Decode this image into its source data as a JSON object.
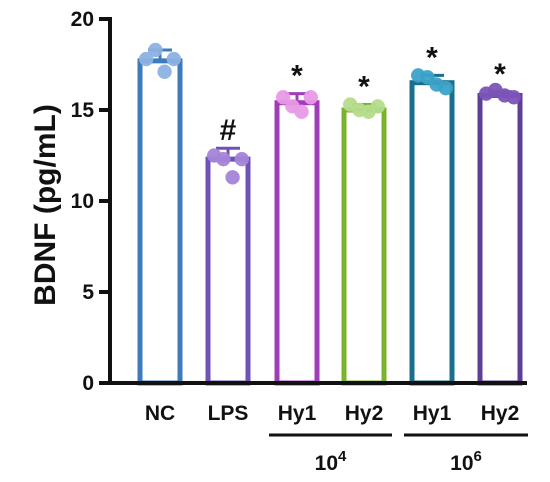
{
  "chart_data": {
    "type": "bar",
    "ylabel": "BDNF (pg/mL)",
    "ylim": [
      0,
      20
    ],
    "yticks": [
      "0",
      "5",
      "10",
      "15",
      "20"
    ],
    "grid": false,
    "categories": [
      "NC",
      "LPS",
      "Hy1",
      "Hy2",
      "Hy1",
      "Hy2"
    ],
    "values": [
      17.7,
      12.3,
      15.4,
      15.0,
      16.5,
      15.8
    ],
    "errors": [
      0.6,
      0.6,
      0.5,
      0.3,
      0.4,
      0.2
    ],
    "points": [
      [
        17.8,
        18.3,
        17.1,
        17.8
      ],
      [
        12.5,
        12.3,
        11.3,
        12.3
      ],
      [
        15.7,
        15.2,
        14.9,
        15.7
      ],
      [
        15.3,
        15.0,
        14.9,
        15.2
      ],
      [
        16.9,
        16.8,
        16.4,
        16.2
      ],
      [
        15.9,
        16.1,
        15.8,
        15.7
      ]
    ],
    "annotations": [
      "",
      "#",
      "*",
      "*",
      "*",
      "*"
    ],
    "groups": [
      {
        "label_base": "10",
        "label_exp": "4",
        "span": [
          2,
          3
        ]
      },
      {
        "label_base": "10",
        "label_exp": "6",
        "span": [
          4,
          5
        ]
      }
    ],
    "colors": {
      "edge": [
        "#3d7bbd",
        "#6f52b6",
        "#a13cb8",
        "#79b32e",
        "#1a6f8c",
        "#5e3f95"
      ],
      "point": [
        "#8db2e3",
        "#a584d8",
        "#e79ae6",
        "#b5dd8c",
        "#3ba3c9",
        "#7c55b8"
      ],
      "axis": "#111111"
    }
  }
}
